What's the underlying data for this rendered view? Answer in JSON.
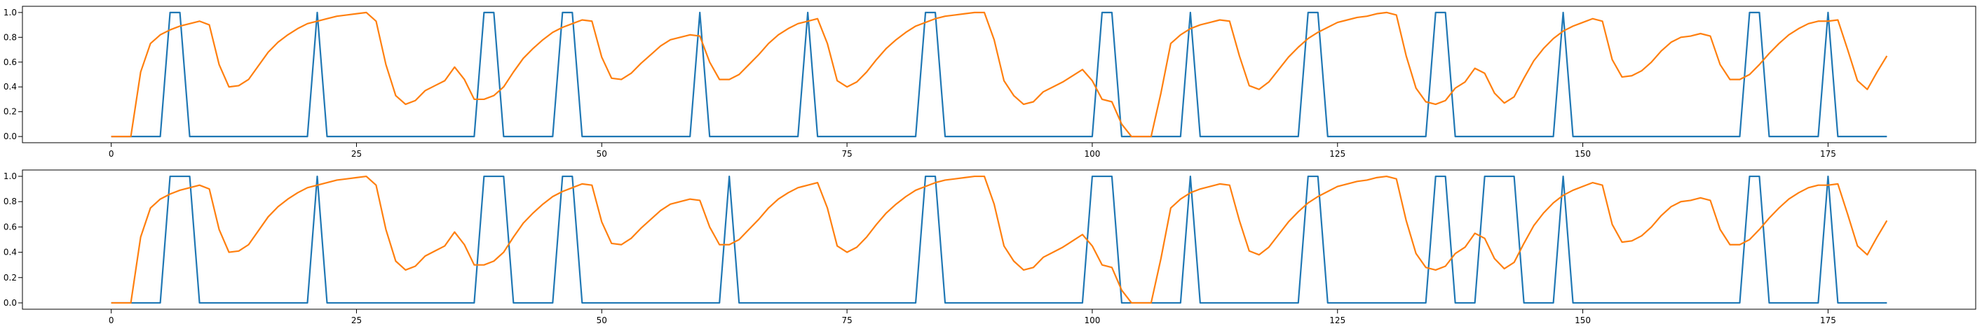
{
  "chart_data": [
    {
      "type": "line",
      "x": [
        0,
        1,
        2,
        3,
        4,
        5,
        6,
        7,
        8,
        9,
        10,
        11,
        12,
        13,
        14,
        15,
        16,
        17,
        18,
        19,
        20,
        21,
        22,
        23,
        24,
        25,
        26,
        27,
        28,
        29,
        30,
        31,
        32,
        33,
        34,
        35,
        36,
        37,
        38,
        39,
        40,
        41,
        42,
        43,
        44,
        45,
        46,
        47,
        48,
        49,
        50,
        51,
        52,
        53,
        54,
        55,
        56,
        57,
        58,
        59,
        60,
        61,
        62,
        63,
        64,
        65,
        66,
        67,
        68,
        69,
        70,
        71,
        72,
        73,
        74,
        75,
        76,
        77,
        78,
        79,
        80,
        81,
        82,
        83,
        84,
        85,
        86,
        87,
        88,
        89,
        90,
        91,
        92,
        93,
        94,
        95,
        96,
        97,
        98,
        99,
        100,
        101,
        102,
        103,
        104,
        105,
        106,
        107,
        108,
        109,
        110,
        111,
        112,
        113,
        114,
        115,
        116,
        117,
        118,
        119,
        120,
        121,
        122,
        123,
        124,
        125,
        126,
        127,
        128,
        129,
        130,
        131,
        132,
        133,
        134,
        135,
        136,
        137,
        138,
        139,
        140,
        141,
        142,
        143,
        144,
        145,
        146,
        147,
        148,
        149,
        150,
        151,
        152,
        153,
        154,
        155,
        156,
        157,
        158,
        159,
        160,
        161,
        162,
        163,
        164,
        165,
        166,
        167,
        168,
        169,
        170,
        171,
        172,
        173,
        174,
        175,
        176,
        177,
        178,
        179,
        180,
        181
      ],
      "series": [
        {
          "color": "#1f77b4",
          "values": [
            0,
            0,
            0,
            0,
            0,
            0,
            1,
            1,
            0,
            0,
            0,
            0,
            0,
            0,
            0,
            0,
            0,
            0,
            0,
            0,
            0,
            1,
            0,
            0,
            0,
            0,
            0,
            0,
            0,
            0,
            0,
            0,
            0,
            0,
            0,
            0,
            0,
            0,
            1,
            1,
            0,
            0,
            0,
            0,
            0,
            0,
            1,
            1,
            0,
            0,
            0,
            0,
            0,
            0,
            0,
            0,
            0,
            0,
            0,
            0,
            1,
            0,
            0,
            0,
            0,
            0,
            0,
            0,
            0,
            0,
            0,
            1,
            0,
            0,
            0,
            0,
            0,
            0,
            0,
            0,
            0,
            0,
            0,
            1,
            1,
            0,
            0,
            0,
            0,
            0,
            0,
            0,
            0,
            0,
            0,
            0,
            0,
            0,
            0,
            0,
            0,
            1,
            1,
            0,
            0,
            0,
            0,
            0,
            0,
            0,
            1,
            0,
            0,
            0,
            0,
            0,
            0,
            0,
            0,
            0,
            0,
            0,
            1,
            1,
            0,
            0,
            0,
            0,
            0,
            0,
            0,
            0,
            0,
            0,
            0,
            1,
            1,
            0,
            0,
            0,
            0,
            0,
            0,
            0,
            0,
            0,
            0,
            0,
            1,
            0,
            0,
            0,
            0,
            0,
            0,
            0,
            0,
            0,
            0,
            0,
            0,
            0,
            0,
            0,
            0,
            0,
            0,
            1,
            1,
            0,
            0,
            0,
            0,
            0,
            0,
            1,
            0,
            0,
            0,
            0,
            0,
            0
          ]
        },
        {
          "color": "#ff7f0e",
          "values": [
            0,
            0,
            0,
            0.52,
            0.75,
            0.82,
            0.86,
            0.89,
            0.91,
            0.93,
            0.9,
            0.58,
            0.4,
            0.41,
            0.46,
            0.57,
            0.68,
            0.76,
            0.82,
            0.87,
            0.91,
            0.93,
            0.95,
            0.97,
            0.98,
            0.99,
            1.0,
            0.93,
            0.58,
            0.33,
            0.26,
            0.29,
            0.37,
            0.41,
            0.45,
            0.56,
            0.46,
            0.3,
            0.3,
            0.33,
            0.4,
            0.52,
            0.63,
            0.71,
            0.78,
            0.84,
            0.88,
            0.91,
            0.94,
            0.93,
            0.64,
            0.47,
            0.46,
            0.51,
            0.59,
            0.66,
            0.73,
            0.78,
            0.8,
            0.82,
            0.81,
            0.6,
            0.46,
            0.46,
            0.5,
            0.58,
            0.66,
            0.75,
            0.82,
            0.87,
            0.91,
            0.93,
            0.95,
            0.75,
            0.45,
            0.4,
            0.44,
            0.52,
            0.62,
            0.71,
            0.78,
            0.84,
            0.89,
            0.92,
            0.95,
            0.97,
            0.98,
            0.99,
            1.0,
            1.0,
            0.78,
            0.45,
            0.33,
            0.26,
            0.28,
            0.36,
            0.4,
            0.44,
            0.49,
            0.54,
            0.45,
            0.3,
            0.28,
            0.1,
            0,
            0,
            0,
            0.35,
            0.75,
            0.82,
            0.87,
            0.9,
            0.92,
            0.94,
            0.93,
            0.65,
            0.41,
            0.38,
            0.44,
            0.54,
            0.64,
            0.72,
            0.79,
            0.84,
            0.88,
            0.92,
            0.94,
            0.96,
            0.97,
            0.99,
            1.0,
            0.98,
            0.65,
            0.39,
            0.28,
            0.26,
            0.29,
            0.39,
            0.44,
            0.55,
            0.51,
            0.35,
            0.27,
            0.32,
            0.47,
            0.61,
            0.71,
            0.79,
            0.85,
            0.89,
            0.92,
            0.95,
            0.93,
            0.62,
            0.48,
            0.49,
            0.53,
            0.6,
            0.69,
            0.76,
            0.8,
            0.81,
            0.83,
            0.81,
            0.58,
            0.46,
            0.46,
            0.5,
            0.58,
            0.67,
            0.75,
            0.82,
            0.87,
            0.91,
            0.93,
            0.93,
            0.94,
            0.7,
            0.45,
            0.38,
            0.52,
            0.65
          ]
        }
      ],
      "xlim": [
        -9.05,
        190.05
      ],
      "xticks": [
        0,
        25,
        50,
        75,
        100,
        125,
        150,
        175
      ],
      "ylim": [
        -0.05,
        1.05
      ],
      "yticks": [
        {
          "value": 0,
          "label": "0.0"
        },
        0.2,
        0.4,
        0.6,
        0.8,
        {
          "value": 1,
          "label": "1.0"
        }
      ]
    },
    {
      "type": "line",
      "x": [
        0,
        1,
        2,
        3,
        4,
        5,
        6,
        7,
        8,
        9,
        10,
        11,
        12,
        13,
        14,
        15,
        16,
        17,
        18,
        19,
        20,
        21,
        22,
        23,
        24,
        25,
        26,
        27,
        28,
        29,
        30,
        31,
        32,
        33,
        34,
        35,
        36,
        37,
        38,
        39,
        40,
        41,
        42,
        43,
        44,
        45,
        46,
        47,
        48,
        49,
        50,
        51,
        52,
        53,
        54,
        55,
        56,
        57,
        58,
        59,
        60,
        61,
        62,
        63,
        64,
        65,
        66,
        67,
        68,
        69,
        70,
        71,
        72,
        73,
        74,
        75,
        76,
        77,
        78,
        79,
        80,
        81,
        82,
        83,
        84,
        85,
        86,
        87,
        88,
        89,
        90,
        91,
        92,
        93,
        94,
        95,
        96,
        97,
        98,
        99,
        100,
        101,
        102,
        103,
        104,
        105,
        106,
        107,
        108,
        109,
        110,
        111,
        112,
        113,
        114,
        115,
        116,
        117,
        118,
        119,
        120,
        121,
        122,
        123,
        124,
        125,
        126,
        127,
        128,
        129,
        130,
        131,
        132,
        133,
        134,
        135,
        136,
        137,
        138,
        139,
        140,
        141,
        142,
        143,
        144,
        145,
        146,
        147,
        148,
        149,
        150,
        151,
        152,
        153,
        154,
        155,
        156,
        157,
        158,
        159,
        160,
        161,
        162,
        163,
        164,
        165,
        166,
        167,
        168,
        169,
        170,
        171,
        172,
        173,
        174,
        175,
        176,
        177,
        178,
        179,
        180,
        181
      ],
      "series": [
        {
          "color": "#1f77b4",
          "values": [
            0,
            0,
            0,
            0,
            0,
            0,
            1,
            1,
            1,
            0,
            0,
            0,
            0,
            0,
            0,
            0,
            0,
            0,
            0,
            0,
            0,
            1,
            0,
            0,
            0,
            0,
            0,
            0,
            0,
            0,
            0,
            0,
            0,
            0,
            0,
            0,
            0,
            0,
            1,
            1,
            1,
            0,
            0,
            0,
            0,
            0,
            1,
            1,
            0,
            0,
            0,
            0,
            0,
            0,
            0,
            0,
            0,
            0,
            0,
            0,
            0,
            0,
            0,
            1,
            0,
            0,
            0,
            0,
            0,
            0,
            0,
            0,
            0,
            0,
            0,
            0,
            0,
            0,
            0,
            0,
            0,
            0,
            0,
            1,
            1,
            0,
            0,
            0,
            0,
            0,
            0,
            0,
            0,
            0,
            0,
            0,
            0,
            0,
            0,
            0,
            1,
            1,
            1,
            0,
            0,
            0,
            0,
            0,
            0,
            0,
            1,
            0,
            0,
            0,
            0,
            0,
            0,
            0,
            0,
            0,
            0,
            0,
            1,
            1,
            0,
            0,
            0,
            0,
            0,
            0,
            0,
            0,
            0,
            0,
            0,
            1,
            1,
            0,
            0,
            0,
            1,
            1,
            1,
            1,
            0,
            0,
            0,
            0,
            1,
            0,
            0,
            0,
            0,
            0,
            0,
            0,
            0,
            0,
            0,
            0,
            0,
            0,
            0,
            0,
            0,
            0,
            0,
            1,
            1,
            0,
            0,
            0,
            0,
            0,
            0,
            1,
            0,
            0,
            0,
            0,
            0,
            0
          ]
        },
        {
          "color": "#ff7f0e",
          "values": [
            0,
            0,
            0,
            0.52,
            0.75,
            0.82,
            0.86,
            0.89,
            0.91,
            0.93,
            0.9,
            0.58,
            0.4,
            0.41,
            0.46,
            0.57,
            0.68,
            0.76,
            0.82,
            0.87,
            0.91,
            0.93,
            0.95,
            0.97,
            0.98,
            0.99,
            1.0,
            0.93,
            0.58,
            0.33,
            0.26,
            0.29,
            0.37,
            0.41,
            0.45,
            0.56,
            0.46,
            0.3,
            0.3,
            0.33,
            0.4,
            0.52,
            0.63,
            0.71,
            0.78,
            0.84,
            0.88,
            0.91,
            0.94,
            0.93,
            0.64,
            0.47,
            0.46,
            0.51,
            0.59,
            0.66,
            0.73,
            0.78,
            0.8,
            0.82,
            0.81,
            0.6,
            0.46,
            0.46,
            0.5,
            0.58,
            0.66,
            0.75,
            0.82,
            0.87,
            0.91,
            0.93,
            0.95,
            0.75,
            0.45,
            0.4,
            0.44,
            0.52,
            0.62,
            0.71,
            0.78,
            0.84,
            0.89,
            0.92,
            0.95,
            0.97,
            0.98,
            0.99,
            1.0,
            1.0,
            0.78,
            0.45,
            0.33,
            0.26,
            0.28,
            0.36,
            0.4,
            0.44,
            0.49,
            0.54,
            0.45,
            0.3,
            0.28,
            0.1,
            0,
            0,
            0,
            0.35,
            0.75,
            0.82,
            0.87,
            0.9,
            0.92,
            0.94,
            0.93,
            0.65,
            0.41,
            0.38,
            0.44,
            0.54,
            0.64,
            0.72,
            0.79,
            0.84,
            0.88,
            0.92,
            0.94,
            0.96,
            0.97,
            0.99,
            1.0,
            0.98,
            0.65,
            0.39,
            0.28,
            0.26,
            0.29,
            0.39,
            0.44,
            0.55,
            0.51,
            0.35,
            0.27,
            0.32,
            0.47,
            0.61,
            0.71,
            0.79,
            0.85,
            0.89,
            0.92,
            0.95,
            0.93,
            0.62,
            0.48,
            0.49,
            0.53,
            0.6,
            0.69,
            0.76,
            0.8,
            0.81,
            0.83,
            0.81,
            0.58,
            0.46,
            0.46,
            0.5,
            0.58,
            0.67,
            0.75,
            0.82,
            0.87,
            0.91,
            0.93,
            0.93,
            0.94,
            0.7,
            0.45,
            0.38,
            0.52,
            0.65
          ]
        }
      ],
      "xlim": [
        -9.05,
        190.05
      ],
      "xticks": [
        0,
        25,
        50,
        75,
        100,
        125,
        150,
        175
      ],
      "ylim": [
        -0.05,
        1.05
      ],
      "yticks": [
        {
          "value": 0,
          "label": "0.0"
        },
        0.2,
        0.4,
        0.6,
        0.8,
        {
          "value": 1,
          "label": "1.0"
        }
      ]
    }
  ]
}
